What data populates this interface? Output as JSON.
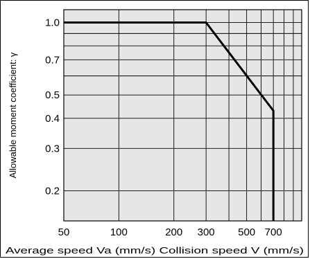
{
  "chart_data": {
    "type": "line",
    "title": "",
    "xlabel": "Average speed Va (mm/s) Collision speed V (mm/s)",
    "ylabel": "Allowable moment coefficient: γ",
    "x_scale": "log",
    "y_scale": "log",
    "xlim": [
      50,
      1000
    ],
    "ylim": [
      0.15,
      1.13
    ],
    "grid": true,
    "x_ticks": [
      50,
      100,
      200,
      300,
      500,
      700
    ],
    "x_tick_labels": [
      "50",
      "100",
      "200",
      "300",
      "500",
      "700"
    ],
    "y_ticks": [
      0.2,
      0.3,
      0.4,
      0.5,
      0.7,
      1.0
    ],
    "y_tick_labels": [
      "0.2",
      "0.3",
      "0.4",
      "0.5",
      "0.7",
      "1.0"
    ],
    "x_minor_grid": [
      400,
      600,
      800,
      900
    ],
    "y_minor_grid": [
      0.6,
      0.8,
      0.9
    ],
    "series": [
      {
        "x": [
          50,
          300,
          700,
          700
        ],
        "y": [
          1.0,
          1.0,
          0.43,
          0.15
        ]
      }
    ]
  },
  "colors": {
    "plot_background": "#e6e6e6",
    "grid": "#000000",
    "series": "#000000"
  }
}
